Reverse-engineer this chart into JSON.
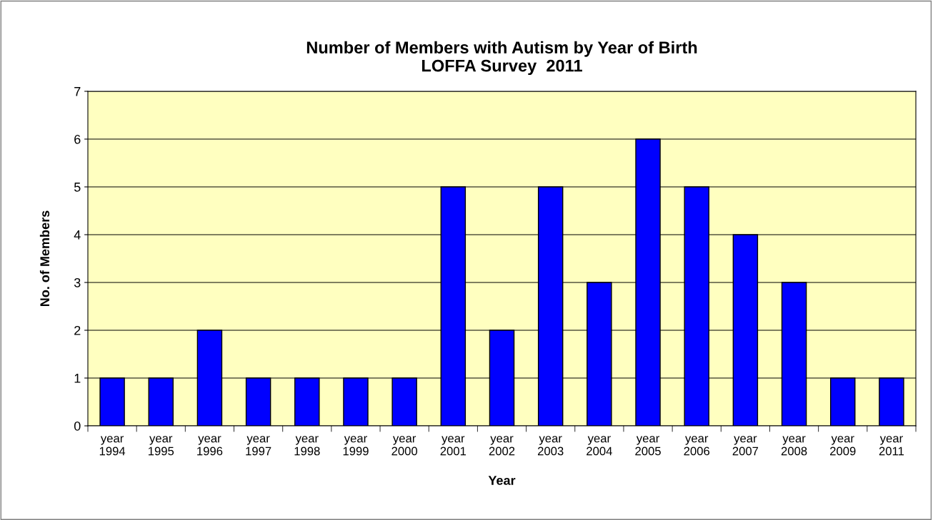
{
  "chart_data": {
    "type": "bar",
    "title": "Number of Members with Autism by Year of Birth\nLOFFA Survey  2011",
    "xlabel": "Year",
    "ylabel": "No. of Members",
    "categories": [
      "year\n1994",
      "year\n1995",
      "year\n1996",
      "year\n1997",
      "year\n1998",
      "year\n1999",
      "year\n2000",
      "year\n2001",
      "year\n2002",
      "year\n2003",
      "year\n2004",
      "year\n2005",
      "year\n2006",
      "year\n2007",
      "year\n2008",
      "year\n2009",
      "year\n2011"
    ],
    "values": [
      1,
      1,
      2,
      1,
      1,
      1,
      1,
      5,
      2,
      5,
      3,
      6,
      5,
      4,
      3,
      1,
      1
    ],
    "color": "#0000ff",
    "ylim": [
      0,
      7
    ],
    "yticks": [
      0,
      1,
      2,
      3,
      4,
      5,
      6,
      7
    ],
    "grid": "y",
    "legend": false
  }
}
